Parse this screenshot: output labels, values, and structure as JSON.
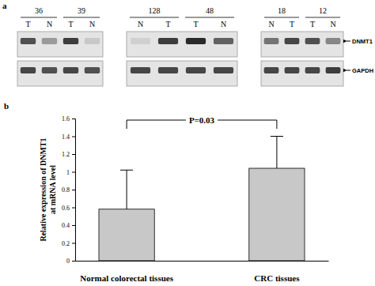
{
  "chart_data": {
    "type": "bar",
    "panel_label": "b",
    "categories": [
      "Normal colorectal tissues",
      "CRC tissues"
    ],
    "values": [
      0.58,
      1.04
    ],
    "errors": [
      0.44,
      0.36
    ],
    "color": "#c8c8c8",
    "ylim": [
      0,
      1.6
    ],
    "yticks": [
      0,
      0.2,
      0.4,
      0.6,
      0.8,
      1,
      1.2,
      1.4,
      1.6
    ],
    "y_label": "Relative expression of DNMT1 at mRNA level",
    "annotations": [
      "P=0.03"
    ]
  },
  "gel": {
    "panel_label": "a",
    "genes": [
      "DNMT1",
      "GAPDH"
    ],
    "blocks": [
      {
        "samples": [
          {
            "id": "36",
            "lanes": [
              {
                "label": "T",
                "intensity": [
                  0.8,
                  0.85
                ]
              },
              {
                "label": "N",
                "intensity": [
                  0.4,
                  0.8
                ]
              }
            ]
          },
          {
            "id": "39",
            "lanes": [
              {
                "label": "T",
                "intensity": [
                  0.9,
                  0.85
                ]
              },
              {
                "label": "N",
                "intensity": [
                  0.15,
                  0.8
                ]
              }
            ]
          }
        ]
      },
      {
        "samples": [
          {
            "id": "128",
            "lanes": [
              {
                "label": "N",
                "intensity": [
                  0.1,
                  0.85
                ]
              },
              {
                "label": "T",
                "intensity": [
                  0.9,
                  0.85
                ]
              }
            ]
          },
          {
            "id": "48",
            "lanes": [
              {
                "label": "T",
                "intensity": [
                  1.0,
                  0.85
                ]
              },
              {
                "label": "N",
                "intensity": [
                  0.7,
                  0.85
                ]
              }
            ]
          }
        ]
      },
      {
        "samples": [
          {
            "id": "18",
            "lanes": [
              {
                "label": "N",
                "intensity": [
                  0.6,
                  0.85
                ]
              },
              {
                "label": "T",
                "intensity": [
                  0.85,
                  0.85
                ]
              }
            ]
          },
          {
            "id": "12",
            "lanes": [
              {
                "label": "T",
                "intensity": [
                  0.8,
                  0.85
                ]
              },
              {
                "label": "N",
                "intensity": [
                  0.5,
                  0.9
                ]
              }
            ]
          }
        ]
      }
    ]
  }
}
